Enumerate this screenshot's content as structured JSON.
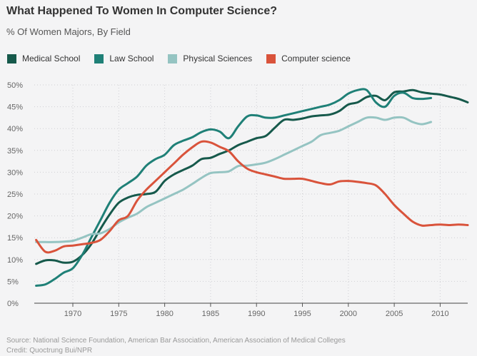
{
  "chart_data": {
    "type": "line",
    "title": "What Happened To Women In Computer Science?",
    "subtitle": "% Of Women Majors, By Field",
    "xlabel": "",
    "ylabel": "",
    "xlim": [
      1965.8,
      2013
    ],
    "ylim": [
      0,
      50
    ],
    "x_ticks": [
      1970,
      1975,
      1980,
      1985,
      1990,
      1995,
      2000,
      2005,
      2010
    ],
    "y_ticks": [
      0,
      5,
      10,
      15,
      20,
      25,
      30,
      35,
      40,
      45,
      50
    ],
    "y_tick_suffix": "%",
    "grid": true,
    "legend_position": "top-left",
    "series": [
      {
        "name": "Medical School",
        "color": "#16594b",
        "points": [
          [
            1966,
            9
          ],
          [
            1967,
            9.8
          ],
          [
            1968,
            9.8
          ],
          [
            1969,
            9.3
          ],
          [
            1970,
            9.5
          ],
          [
            1971,
            11
          ],
          [
            1972,
            13.5
          ],
          [
            1973,
            17
          ],
          [
            1974,
            20.3
          ],
          [
            1975,
            23
          ],
          [
            1976,
            24.2
          ],
          [
            1977,
            24.8
          ],
          [
            1978,
            25
          ],
          [
            1979,
            25.5
          ],
          [
            1980,
            28
          ],
          [
            1981,
            29.5
          ],
          [
            1982,
            30.5
          ],
          [
            1983,
            31.5
          ],
          [
            1984,
            33
          ],
          [
            1985,
            33.3
          ],
          [
            1986,
            34.2
          ],
          [
            1987,
            35
          ],
          [
            1988,
            36.2
          ],
          [
            1989,
            37
          ],
          [
            1990,
            37.8
          ],
          [
            1991,
            38.3
          ],
          [
            1992,
            40.2
          ],
          [
            1993,
            42
          ],
          [
            1994,
            42
          ],
          [
            1995,
            42.3
          ],
          [
            1996,
            42.8
          ],
          [
            1997,
            43
          ],
          [
            1998,
            43.2
          ],
          [
            1999,
            44
          ],
          [
            2000,
            45.5
          ],
          [
            2001,
            46
          ],
          [
            2002,
            47.2
          ],
          [
            2003,
            47.5
          ],
          [
            2004,
            46.5
          ],
          [
            2005,
            48.3
          ],
          [
            2006,
            48.5
          ],
          [
            2007,
            48.8
          ],
          [
            2008,
            48.3
          ],
          [
            2009,
            48
          ],
          [
            2010,
            47.8
          ],
          [
            2011,
            47.3
          ],
          [
            2012,
            46.8
          ],
          [
            2013,
            46
          ]
        ]
      },
      {
        "name": "Law School",
        "color": "#1f8077",
        "points": [
          [
            1966,
            4
          ],
          [
            1967,
            4.3
          ],
          [
            1968,
            5.5
          ],
          [
            1969,
            7
          ],
          [
            1970,
            8
          ],
          [
            1971,
            11
          ],
          [
            1972,
            15
          ],
          [
            1973,
            19
          ],
          [
            1974,
            23
          ],
          [
            1975,
            26
          ],
          [
            1976,
            27.5
          ],
          [
            1977,
            29
          ],
          [
            1978,
            31.5
          ],
          [
            1979,
            33
          ],
          [
            1980,
            34
          ],
          [
            1981,
            36.2
          ],
          [
            1982,
            37.2
          ],
          [
            1983,
            38
          ],
          [
            1984,
            39.2
          ],
          [
            1985,
            39.8
          ],
          [
            1986,
            39.3
          ],
          [
            1987,
            37.8
          ],
          [
            1988,
            40.5
          ],
          [
            1989,
            42.8
          ],
          [
            1990,
            43
          ],
          [
            1991,
            42.5
          ],
          [
            1992,
            42.5
          ],
          [
            1993,
            43
          ],
          [
            1994,
            43.5
          ],
          [
            1995,
            44
          ],
          [
            1996,
            44.5
          ],
          [
            1997,
            45
          ],
          [
            1998,
            45.5
          ],
          [
            1999,
            46.5
          ],
          [
            2000,
            48
          ],
          [
            2001,
            48.8
          ],
          [
            2002,
            48.8
          ],
          [
            2003,
            46
          ],
          [
            2004,
            45
          ],
          [
            2005,
            47.5
          ],
          [
            2006,
            48.2
          ],
          [
            2007,
            47
          ],
          [
            2008,
            46.8
          ],
          [
            2009,
            47
          ]
        ]
      },
      {
        "name": "Physical Sciences",
        "color": "#95c4c2",
        "points": [
          [
            1966,
            14
          ],
          [
            1967,
            14
          ],
          [
            1968,
            14
          ],
          [
            1969,
            14.1
          ],
          [
            1970,
            14.3
          ],
          [
            1971,
            15
          ],
          [
            1972,
            15.8
          ],
          [
            1973,
            16
          ],
          [
            1974,
            17
          ],
          [
            1975,
            18.5
          ],
          [
            1976,
            19.6
          ],
          [
            1977,
            20.5
          ],
          [
            1978,
            22
          ],
          [
            1979,
            23
          ],
          [
            1980,
            24
          ],
          [
            1981,
            25
          ],
          [
            1982,
            26
          ],
          [
            1983,
            27.3
          ],
          [
            1984,
            28.7
          ],
          [
            1985,
            29.8
          ],
          [
            1986,
            30
          ],
          [
            1987,
            30.2
          ],
          [
            1988,
            31.4
          ],
          [
            1989,
            31.5
          ],
          [
            1990,
            31.8
          ],
          [
            1991,
            32.2
          ],
          [
            1992,
            33
          ],
          [
            1993,
            34
          ],
          [
            1994,
            35
          ],
          [
            1995,
            36
          ],
          [
            1996,
            37
          ],
          [
            1997,
            38.5
          ],
          [
            1998,
            39
          ],
          [
            1999,
            39.5
          ],
          [
            2000,
            40.5
          ],
          [
            2001,
            41.5
          ],
          [
            2002,
            42.5
          ],
          [
            2003,
            42.5
          ],
          [
            2004,
            42
          ],
          [
            2005,
            42.5
          ],
          [
            2006,
            42.5
          ],
          [
            2007,
            41.5
          ],
          [
            2008,
            41
          ],
          [
            2009,
            41.5
          ]
        ]
      },
      {
        "name": "Computer science",
        "color": "#d9533b",
        "points": [
          [
            1966,
            14.5
          ],
          [
            1967,
            11.8
          ],
          [
            1968,
            12
          ],
          [
            1969,
            13
          ],
          [
            1970,
            13.2
          ],
          [
            1971,
            13.5
          ],
          [
            1972,
            13.8
          ],
          [
            1973,
            14.5
          ],
          [
            1974,
            16.5
          ],
          [
            1975,
            19
          ],
          [
            1976,
            20
          ],
          [
            1977,
            23.5
          ],
          [
            1978,
            26
          ],
          [
            1979,
            28
          ],
          [
            1980,
            30
          ],
          [
            1981,
            32
          ],
          [
            1982,
            34
          ],
          [
            1983,
            35.7
          ],
          [
            1984,
            37
          ],
          [
            1985,
            36.8
          ],
          [
            1986,
            35.8
          ],
          [
            1987,
            34.8
          ],
          [
            1988,
            32.5
          ],
          [
            1989,
            30.8
          ],
          [
            1990,
            30
          ],
          [
            1991,
            29.5
          ],
          [
            1992,
            29
          ],
          [
            1993,
            28.5
          ],
          [
            1994,
            28.5
          ],
          [
            1995,
            28.5
          ],
          [
            1996,
            28
          ],
          [
            1997,
            27.5
          ],
          [
            1998,
            27.2
          ],
          [
            1999,
            27.9
          ],
          [
            2000,
            28
          ],
          [
            2001,
            27.8
          ],
          [
            2002,
            27.5
          ],
          [
            2003,
            27
          ],
          [
            2004,
            25
          ],
          [
            2005,
            22.5
          ],
          [
            2006,
            20.5
          ],
          [
            2007,
            18.7
          ],
          [
            2008,
            17.8
          ],
          [
            2009,
            17.9
          ],
          [
            2010,
            18
          ],
          [
            2011,
            17.9
          ],
          [
            2012,
            18
          ],
          [
            2013,
            17.9
          ]
        ]
      }
    ]
  },
  "footer": {
    "source": "Source: National Science Foundation, American Bar Association, American Association of Medical Colleges",
    "credit": "Credit: Quoctrung Bui/NPR"
  }
}
